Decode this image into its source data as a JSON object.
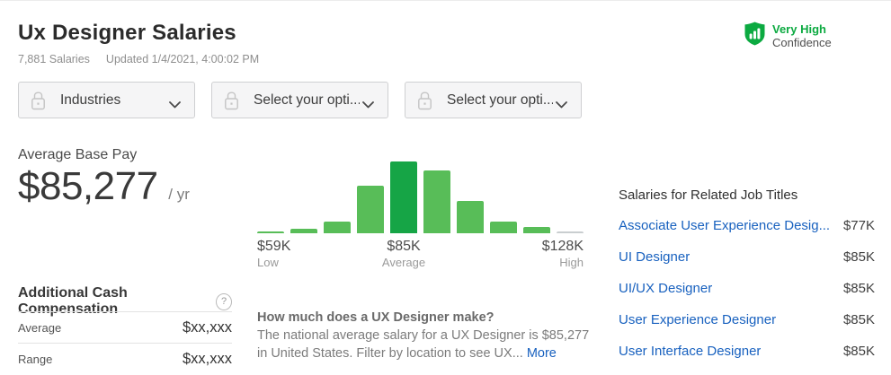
{
  "header": {
    "title": "Ux Designer Salaries",
    "salary_count": "7,881 Salaries",
    "updated": "Updated 1/4/2021, 4:00:02 PM",
    "confidence_level": "Very High",
    "confidence_label": "Confidence",
    "accent_green": "#0caa41",
    "link_blue": "#1861bf"
  },
  "filters": [
    {
      "label": "Industries"
    },
    {
      "label": "Select your opti..."
    },
    {
      "label": "Select your opti..."
    }
  ],
  "base_pay": {
    "label": "Average Base Pay",
    "amount": "$85,277",
    "period": "/ yr"
  },
  "additional_cash": {
    "title": "Additional Cash Compensation",
    "help_icon": "?",
    "rows": [
      {
        "label": "Average",
        "value": "$xx,xxx"
      },
      {
        "label": "Range",
        "value": "$xx,xxx"
      }
    ]
  },
  "chart_data": {
    "type": "bar",
    "description": "Salary distribution histogram for UX Designer base pay",
    "values": [
      2,
      5,
      13,
      53,
      80,
      70,
      36,
      13,
      7,
      1
    ],
    "ylim": [
      0,
      80
    ],
    "bar_roles": [
      "normal",
      "normal",
      "normal",
      "normal",
      "highlight",
      "normal",
      "normal",
      "normal",
      "normal",
      "muted"
    ],
    "colors": {
      "normal": "#58bd58",
      "highlight": "#16a546",
      "muted": "#c9ced0"
    },
    "grid": false,
    "x_ticks": [
      {
        "value": "$59K",
        "label": "Low"
      },
      {
        "value": "$85K",
        "label": "Average"
      },
      {
        "value": "$128K",
        "label": "High"
      }
    ]
  },
  "about": {
    "question": "How much does a UX Designer make?",
    "body": "The national average salary for a UX Designer is $85,277 in United States. Filter by location to see UX...",
    "more_label": "More"
  },
  "related": {
    "title": "Salaries for Related Job Titles",
    "items": [
      {
        "title": "Associate User Experience Desig...",
        "salary": "$77K"
      },
      {
        "title": "UI Designer",
        "salary": "$85K"
      },
      {
        "title": "UI/UX Designer",
        "salary": "$85K"
      },
      {
        "title": "User Experience Designer",
        "salary": "$85K"
      },
      {
        "title": "User Interface Designer",
        "salary": "$85K"
      }
    ]
  }
}
